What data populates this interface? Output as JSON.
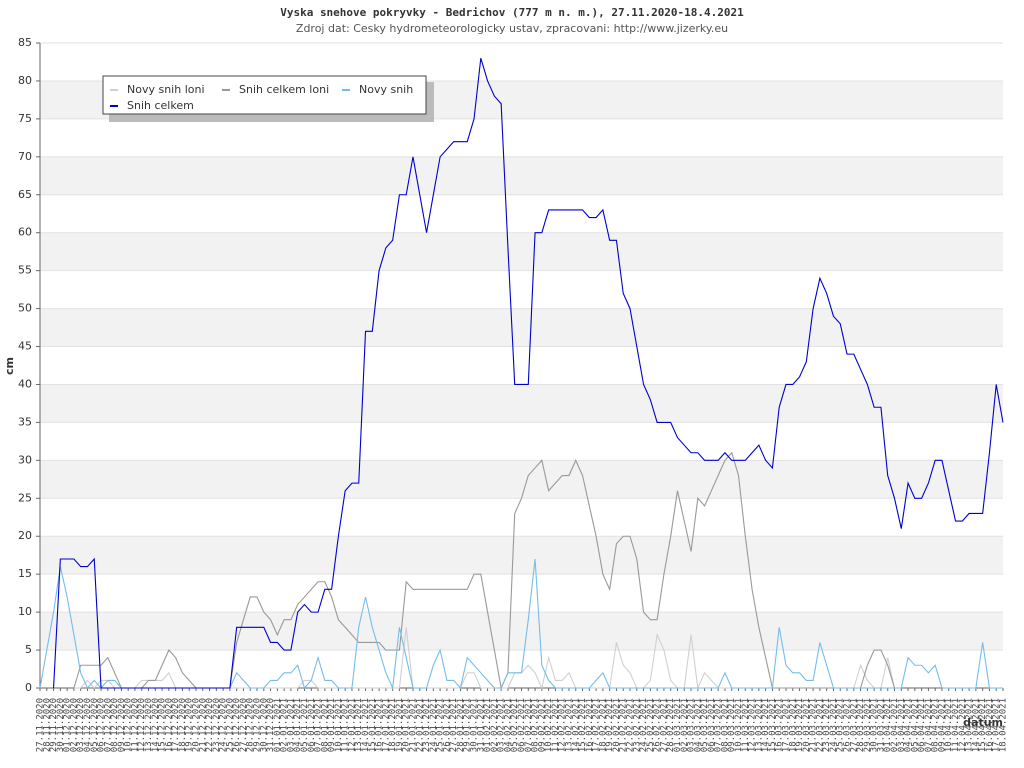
{
  "chart_data": {
    "type": "line",
    "title": "Vyska snehove pokryvky - Bedrichov (777 m n. m.), 27.11.2020-18.4.2021",
    "subtitle": "Zdroj dat: Cesky hydrometeorologicky ustav, zpracovani: http://www.jizerky.eu",
    "ylabel": "cm",
    "xlabel": "datum",
    "categories": [
      "27.11.2020",
      "28.11.2020",
      "29.11.2020",
      "30.11.2020",
      "01.12.2020",
      "02.12.2020",
      "03.12.2020",
      "04.12.2020",
      "05.12.2020",
      "06.12.2020",
      "07.12.2020",
      "08.12.2020",
      "09.12.2020",
      "10.12.2020",
      "11.12.2020",
      "12.12.2020",
      "13.12.2020",
      "14.12.2020",
      "15.12.2020",
      "16.12.2020",
      "17.12.2020",
      "18.12.2020",
      "19.12.2020",
      "20.12.2020",
      "21.12.2020",
      "22.12.2020",
      "23.12.2020",
      "24.12.2020",
      "25.12.2020",
      "26.12.2020",
      "27.12.2020",
      "28.12.2020",
      "29.12.2020",
      "30.12.2020",
      "31.12.2020",
      "01.01.2021",
      "02.01.2021",
      "03.01.2021",
      "04.01.2021",
      "05.01.2021",
      "06.01.2021",
      "07.01.2021",
      "08.01.2021",
      "09.01.2021",
      "10.01.2021",
      "11.01.2021",
      "12.01.2021",
      "13.01.2021",
      "14.01.2021",
      "15.01.2021",
      "16.01.2021",
      "17.01.2021",
      "18.01.2021",
      "19.01.2021",
      "20.01.2021",
      "21.01.2021",
      "22.01.2021",
      "23.01.2021",
      "24.01.2021",
      "25.01.2021",
      "26.01.2021",
      "27.01.2021",
      "28.01.2021",
      "29.01.2021",
      "30.01.2021",
      "31.01.2021",
      "01.02.2021",
      "02.02.2021",
      "03.02.2021",
      "04.02.2021",
      "05.02.2021",
      "06.02.2021",
      "07.02.2021",
      "08.02.2021",
      "09.02.2021",
      "10.02.2021",
      "11.02.2021",
      "12.02.2021",
      "13.02.2021",
      "14.02.2021",
      "15.02.2021",
      "16.02.2021",
      "17.02.2021",
      "18.02.2021",
      "19.02.2021",
      "20.02.2021",
      "21.02.2021",
      "22.02.2021",
      "23.02.2021",
      "24.02.2021",
      "25.02.2021",
      "26.02.2021",
      "27.02.2021",
      "28.02.2021",
      "01.03.2021",
      "02.03.2021",
      "03.03.2021",
      "04.03.2021",
      "05.03.2021",
      "06.03.2021",
      "07.03.2021",
      "08.03.2021",
      "09.03.2021",
      "10.03.2021",
      "11.03.2021",
      "12.03.2021",
      "13.03.2021",
      "14.03.2021",
      "15.03.2021",
      "16.03.2021",
      "17.03.2021",
      "18.03.2021",
      "19.03.2021",
      "20.03.2021",
      "21.03.2021",
      "22.03.2021",
      "23.03.2021",
      "24.03.2021",
      "25.03.2021",
      "26.03.2021",
      "27.03.2021",
      "28.03.2021",
      "29.03.2021",
      "30.03.2021",
      "31.03.2021",
      "01.04.2021",
      "02.04.2021",
      "03.04.2021",
      "04.04.2021",
      "05.04.2021",
      "06.04.2021",
      "07.04.2021",
      "08.04.2021",
      "09.04.2021",
      "10.04.2021",
      "11.04.2021",
      "12.04.2021",
      "13.04.2021",
      "14.04.2021",
      "15.04.2021",
      "16.04.2021",
      "17.04.2021",
      "18.04.2021"
    ],
    "series": [
      {
        "name": "Novy snih loni",
        "color": "#d0d0d0",
        "values": [
          null,
          null,
          null,
          null,
          null,
          0,
          0,
          1,
          0,
          1,
          1,
          0,
          0,
          0,
          0,
          1,
          1,
          1,
          1,
          2,
          0,
          0,
          0,
          0,
          0,
          0,
          0,
          0,
          0,
          0,
          0,
          0,
          0,
          0,
          0,
          0,
          0,
          0,
          0,
          1,
          1,
          0,
          0,
          0,
          0,
          0,
          0,
          0,
          0,
          0,
          0,
          0,
          0,
          0,
          8,
          0,
          0,
          0,
          0,
          0,
          0,
          0,
          0,
          2,
          2,
          0,
          0,
          0,
          0,
          0,
          2,
          2,
          3,
          2,
          0,
          4,
          1,
          1,
          2,
          0,
          0,
          0,
          0,
          0,
          0,
          6,
          3,
          2,
          0,
          0,
          1,
          7,
          5,
          1,
          0,
          0,
          7,
          0,
          2,
          1,
          0,
          0,
          0,
          0,
          0,
          0,
          0,
          0,
          0,
          0,
          0,
          0,
          0,
          0,
          0,
          0,
          0,
          0,
          0,
          0,
          0,
          3,
          1,
          0,
          0,
          4,
          0,
          null,
          null,
          null,
          null,
          null,
          null,
          null,
          null,
          null,
          null,
          null,
          null,
          null,
          null,
          null,
          null
        ]
      },
      {
        "name": "Snih celkem loni",
        "color": "#999999",
        "values": [
          null,
          null,
          null,
          null,
          null,
          0,
          3,
          3,
          3,
          3,
          4,
          2,
          0,
          0,
          0,
          0,
          1,
          1,
          3,
          5,
          4,
          2,
          1,
          0,
          0,
          0,
          0,
          0,
          0,
          6,
          9,
          12,
          12,
          10,
          9,
          7,
          9,
          9,
          11,
          12,
          13,
          14,
          14,
          12,
          9,
          8,
          7,
          6,
          6,
          6,
          6,
          5,
          5,
          5,
          14,
          13,
          13,
          13,
          13,
          13,
          13,
          13,
          13,
          13,
          15,
          15,
          10,
          5,
          0,
          2,
          23,
          25,
          28,
          29,
          30,
          26,
          27,
          28,
          28,
          30,
          28,
          24,
          20,
          15,
          13,
          19,
          20,
          20,
          17,
          10,
          9,
          9,
          15,
          20,
          26,
          22,
          18,
          25,
          24,
          26,
          28,
          30,
          31,
          28,
          20,
          13,
          8,
          4,
          0,
          0,
          0,
          0,
          0,
          0,
          0,
          0,
          0,
          0,
          0,
          0,
          0,
          0,
          3,
          5,
          5,
          3,
          0,
          null,
          null,
          null,
          null,
          null,
          null,
          null,
          null,
          null,
          null,
          null,
          null,
          null,
          null,
          null,
          null
        ]
      },
      {
        "name": "Novy snih",
        "color": "#74bde8",
        "values": [
          0,
          5,
          10,
          16,
          12,
          7,
          2,
          0,
          1,
          0,
          1,
          1,
          0,
          0,
          0,
          0,
          0,
          0,
          0,
          0,
          0,
          0,
          0,
          0,
          0,
          0,
          0,
          0,
          0,
          2,
          1,
          0,
          0,
          0,
          1,
          1,
          2,
          2,
          3,
          0,
          1,
          4,
          1,
          1,
          0,
          0,
          0,
          8,
          12,
          8,
          5,
          2,
          0,
          8,
          4,
          0,
          0,
          0,
          3,
          5,
          1,
          1,
          0,
          4,
          3,
          2,
          1,
          0,
          0,
          2,
          2,
          2,
          9,
          17,
          3,
          1,
          0,
          0,
          0,
          0,
          0,
          0,
          1,
          2,
          0,
          0,
          0,
          0,
          0,
          0,
          0,
          0,
          0,
          0,
          0,
          0,
          0,
          0,
          0,
          0,
          0,
          2,
          0,
          0,
          0,
          0,
          0,
          0,
          0,
          8,
          3,
          2,
          2,
          1,
          1,
          6,
          3,
          0,
          0,
          0,
          0,
          0,
          0,
          0,
          0,
          0,
          0,
          0,
          4,
          3,
          3,
          2,
          3,
          0,
          0,
          0,
          0,
          0,
          0,
          6,
          0,
          0,
          0
        ]
      },
      {
        "name": "Snih celkem",
        "color": "#0000cc",
        "values": [
          null,
          null,
          0,
          17,
          17,
          17,
          16,
          16,
          17,
          0,
          0,
          0,
          0,
          0,
          0,
          0,
          0,
          0,
          0,
          0,
          0,
          0,
          0,
          0,
          0,
          0,
          0,
          0,
          0,
          8,
          8,
          8,
          8,
          8,
          6,
          6,
          5,
          5,
          10,
          11,
          10,
          10,
          13,
          13,
          20,
          26,
          27,
          27,
          47,
          47,
          55,
          58,
          59,
          65,
          65,
          70,
          65,
          60,
          65,
          70,
          71,
          72,
          72,
          72,
          75,
          83,
          80,
          78,
          77,
          58,
          40,
          40,
          40,
          60,
          60,
          63,
          63,
          63,
          63,
          63,
          63,
          62,
          62,
          63,
          59,
          59,
          52,
          50,
          45,
          40,
          38,
          35,
          35,
          35,
          33,
          32,
          31,
          31,
          30,
          30,
          30,
          31,
          30,
          30,
          30,
          31,
          32,
          30,
          29,
          37,
          40,
          40,
          41,
          43,
          50,
          54,
          52,
          49,
          48,
          44,
          44,
          42,
          40,
          37,
          37,
          28,
          25,
          21,
          27,
          25,
          25,
          27,
          30,
          30,
          26,
          22,
          22,
          23,
          23,
          23,
          31,
          40,
          35
        ]
      }
    ],
    "ylim": [
      0,
      85
    ],
    "yticks": [
      0,
      5,
      10,
      15,
      20,
      25,
      30,
      35,
      40,
      45,
      50,
      55,
      60,
      65,
      70,
      75,
      80,
      85
    ],
    "grid": true
  }
}
